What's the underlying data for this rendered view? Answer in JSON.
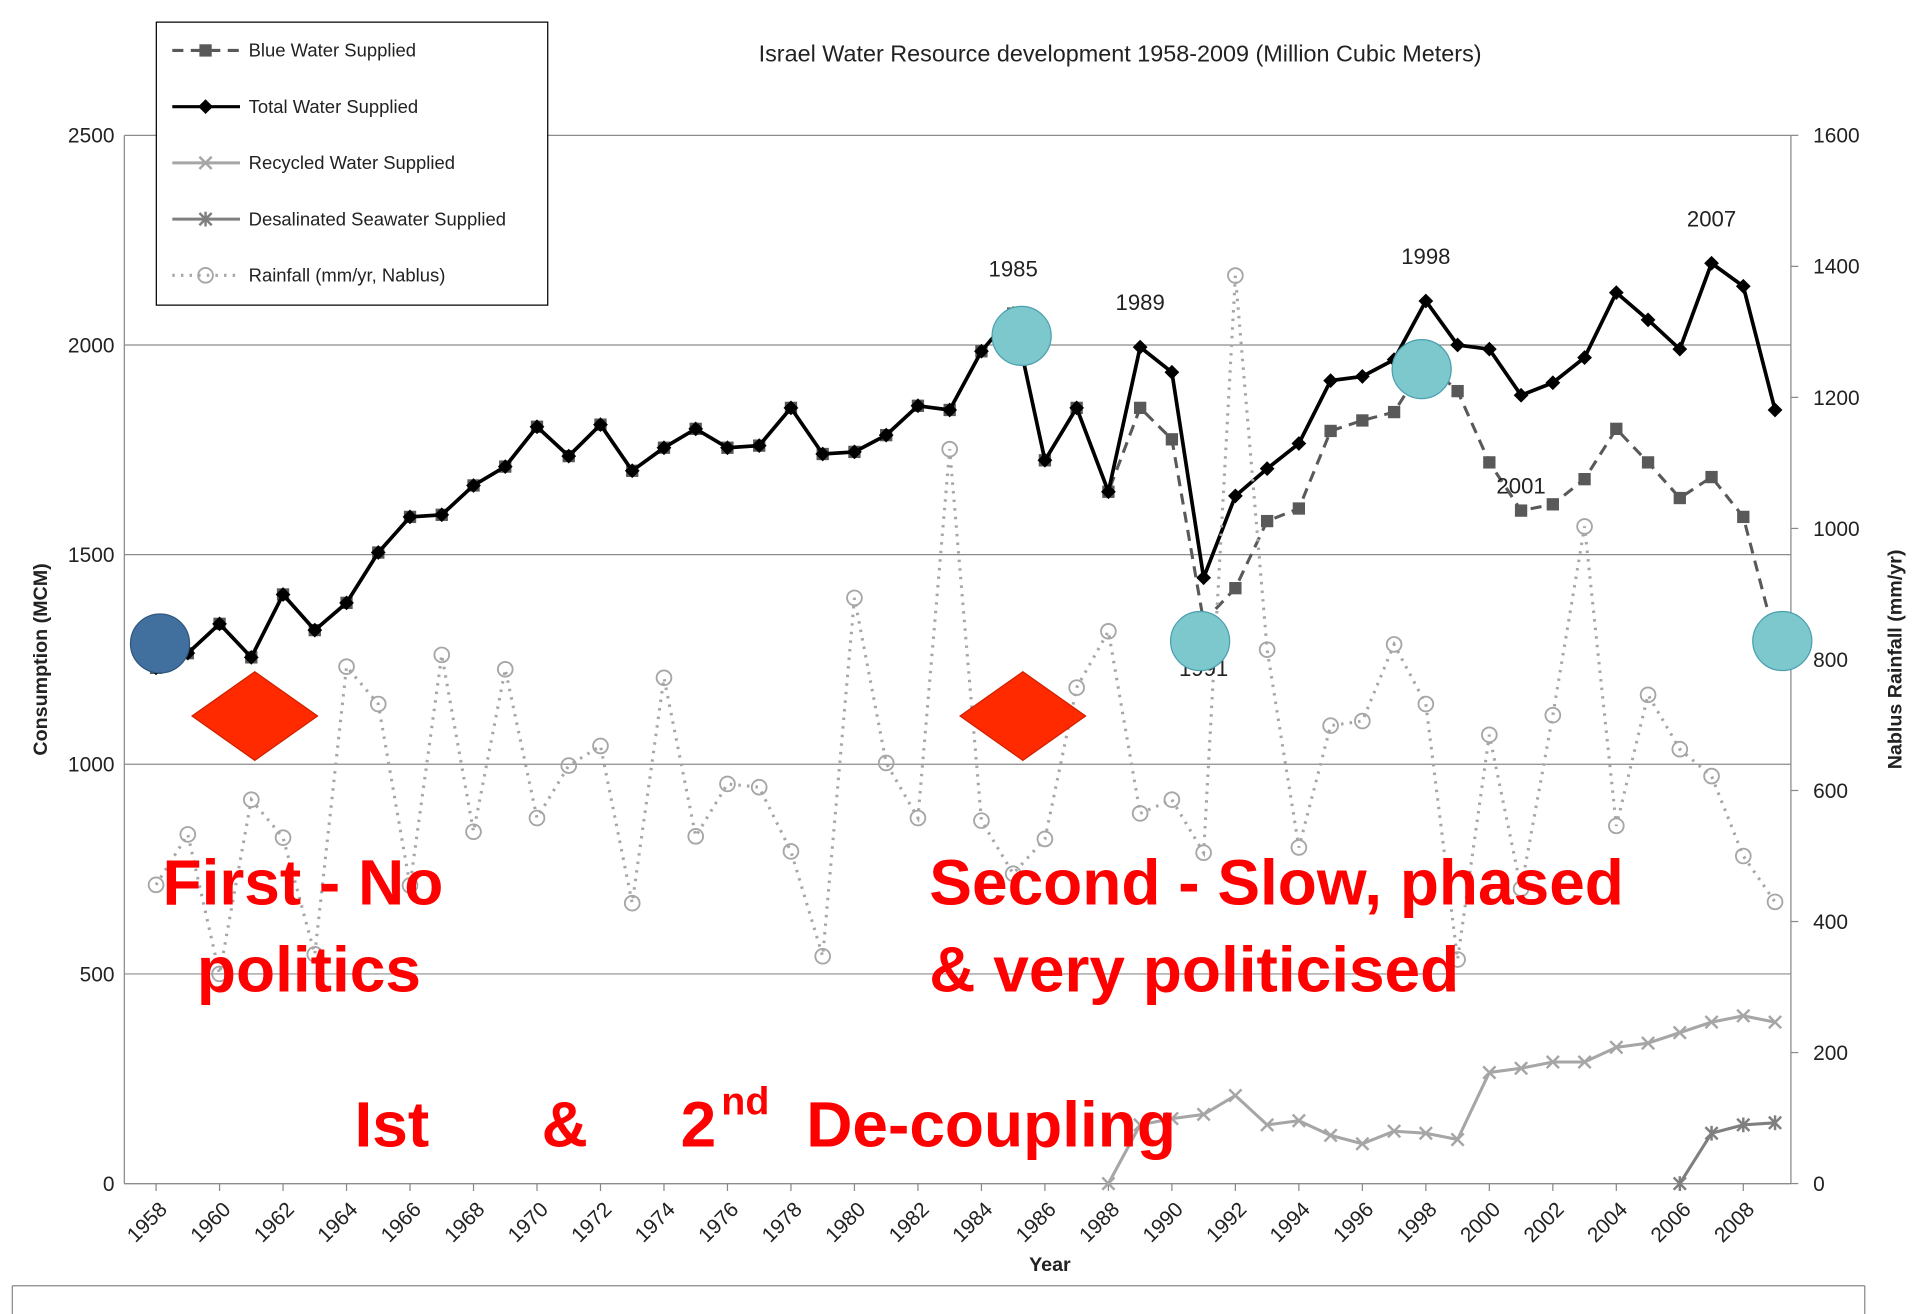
{
  "chart_data": {
    "type": "line",
    "title": "Israel Water Resource development 1958-2009  (Million Cubic Meters)",
    "ylabel": "Consumption (MCM)",
    "y2label": "Nablus Rainfall (mm/yr)",
    "xlabel": "Year",
    "x": [
      1958,
      1959,
      1960,
      1961,
      1962,
      1963,
      1964,
      1965,
      1966,
      1967,
      1968,
      1969,
      1970,
      1971,
      1972,
      1973,
      1974,
      1975,
      1976,
      1977,
      1978,
      1979,
      1980,
      1981,
      1982,
      1983,
      1984,
      1985,
      1986,
      1987,
      1988,
      1989,
      1990,
      1991,
      1992,
      1993,
      1994,
      1995,
      1996,
      1997,
      1998,
      1999,
      2000,
      2001,
      2002,
      2003,
      2004,
      2005,
      2006,
      2007,
      2008,
      2009
    ],
    "xlim": [
      1957,
      2009.5
    ],
    "xticks": [
      1958,
      1960,
      1962,
      1964,
      1966,
      1968,
      1970,
      1972,
      1974,
      1976,
      1978,
      1980,
      1982,
      1984,
      1986,
      1988,
      1990,
      1992,
      1994,
      1996,
      1998,
      2000,
      2002,
      2004,
      2006,
      2008
    ],
    "ylim": [
      0,
      2500
    ],
    "yticks": [
      0,
      500,
      1000,
      1500,
      2000,
      2500
    ],
    "y2lim": [
      0,
      1600
    ],
    "y2ticks": [
      0,
      200,
      400,
      600,
      800,
      1000,
      1200,
      1400,
      1600
    ],
    "grid": true,
    "series": [
      {
        "name": "Blue Water Supplied",
        "color": "#595959",
        "style": "dashed",
        "marker": "square",
        "values": [
          1230,
          1265,
          1335,
          1255,
          1405,
          1320,
          1385,
          1505,
          1590,
          1595,
          1665,
          1710,
          1805,
          1735,
          1810,
          1700,
          1755,
          1800,
          1755,
          1760,
          1850,
          1740,
          1745,
          1785,
          1855,
          1845,
          1985,
          2075,
          1725,
          1850,
          1650,
          1850,
          1775,
          1340,
          1420,
          1580,
          1610,
          1795,
          1820,
          1840,
          1960,
          1890,
          1720,
          1605,
          1620,
          1680,
          1800,
          1720,
          1635,
          1685,
          1590,
          1300
        ]
      },
      {
        "name": "Total Water Supplied",
        "color": "#000000",
        "style": "solid",
        "marker": "diamond",
        "values": [
          1230,
          1265,
          1335,
          1255,
          1405,
          1320,
          1385,
          1505,
          1590,
          1595,
          1665,
          1710,
          1805,
          1735,
          1810,
          1700,
          1755,
          1800,
          1755,
          1760,
          1850,
          1740,
          1745,
          1785,
          1855,
          1845,
          1985,
          2075,
          1725,
          1850,
          1650,
          1995,
          1935,
          1445,
          1640,
          1705,
          1765,
          1915,
          1925,
          1965,
          2105,
          2000,
          1990,
          1880,
          1910,
          1970,
          2125,
          2060,
          1990,
          2195,
          2140,
          1845
        ]
      },
      {
        "name": "Recycled Water Supplied",
        "color": "#a6a6a6",
        "style": "solid",
        "marker": "x",
        "values": [
          null,
          null,
          null,
          null,
          null,
          null,
          null,
          null,
          null,
          null,
          null,
          null,
          null,
          null,
          null,
          null,
          null,
          null,
          null,
          null,
          null,
          null,
          null,
          null,
          null,
          null,
          null,
          null,
          null,
          null,
          0,
          140,
          155,
          165,
          210,
          140,
          150,
          115,
          95,
          125,
          120,
          105,
          265,
          275,
          290,
          290,
          325,
          335,
          360,
          385,
          400,
          385
        ]
      },
      {
        "name": "Desalinated Seawater Supplied",
        "color": "#7f7f7f",
        "style": "solid",
        "marker": "star",
        "values": [
          null,
          null,
          null,
          null,
          null,
          null,
          null,
          null,
          null,
          null,
          null,
          null,
          null,
          null,
          null,
          null,
          null,
          null,
          null,
          null,
          null,
          null,
          null,
          null,
          null,
          null,
          null,
          null,
          null,
          null,
          null,
          null,
          null,
          null,
          null,
          null,
          null,
          null,
          null,
          null,
          null,
          null,
          null,
          null,
          null,
          null,
          null,
          null,
          0,
          120,
          140,
          145
        ]
      },
      {
        "name": "Rainfall (mm/yr, Nablus)",
        "color": "#a6a6a6",
        "style": "dotted",
        "marker": "circle",
        "axis": "y2",
        "values": [
          456,
          533,
          320,
          586,
          528,
          350,
          789,
          732,
          455,
          807,
          537,
          785,
          558,
          638,
          668,
          428,
          772,
          530,
          610,
          605,
          507,
          347,
          894,
          642,
          558,
          1121,
          554,
          473,
          526,
          757,
          843,
          565,
          586,
          505,
          1386,
          815,
          513,
          699,
          706,
          823,
          732,
          342,
          685,
          450,
          715,
          1003,
          546,
          746,
          663,
          622,
          500,
          430
        ]
      }
    ],
    "annotations": [
      {
        "text": "1985",
        "x": 1985
      },
      {
        "text": "1989",
        "x": 1989
      },
      {
        "text": "1991",
        "x": 1991
      },
      {
        "text": "1998",
        "x": 1998
      },
      {
        "text": "2001",
        "x": 2001
      },
      {
        "text": "2007",
        "x": 2007
      }
    ]
  },
  "overlay": {
    "first": [
      "First - No",
      "politics"
    ],
    "second": [
      "Second - Slow, phased",
      "& very politicised"
    ],
    "decoupling": [
      "Ist",
      "&",
      "2",
      "nd",
      "De-coupling"
    ]
  }
}
